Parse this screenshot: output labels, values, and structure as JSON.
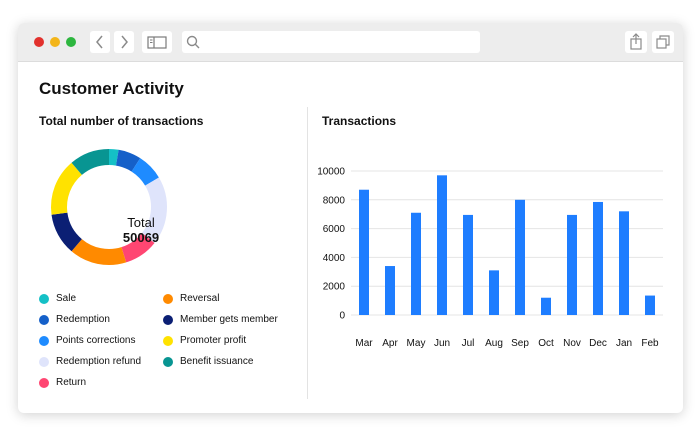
{
  "page": {
    "title": "Customer Activity",
    "donut_title": "Total number of transactions",
    "donut_total_label": "Total",
    "donut_total_value": "50069",
    "bar_title": "Transactions"
  },
  "legend": [
    {
      "label": "Sale",
      "color": "#14c0c6"
    },
    {
      "label": "Reversal",
      "color": "#ff8a00"
    },
    {
      "label": "Redemption",
      "color": "#1560c9"
    },
    {
      "label": "Member gets member",
      "color": "#0b1f74"
    },
    {
      "label": "Points corrections",
      "color": "#1e8bff"
    },
    {
      "label": "Promoter profit",
      "color": "#ffe200"
    },
    {
      "label": "Redemption refund",
      "color": "#dfe4fb"
    },
    {
      "label": "Benefit issuance",
      "color": "#089592"
    },
    {
      "label": "Return",
      "color": "#ff4672"
    }
  ],
  "chart_data": [
    {
      "type": "pie",
      "title": "Total number of transactions",
      "total": 50069,
      "categories": [
        "Sale",
        "Redemption",
        "Points corrections",
        "Redemption refund",
        "Return",
        "Reversal",
        "Member gets member",
        "Promoter profit",
        "Benefit issuance"
      ],
      "values": [
        2.5,
        6,
        7,
        18,
        9,
        15,
        11,
        15,
        10.5
      ],
      "colors": [
        "#14c0c6",
        "#1560c9",
        "#1e8bff",
        "#dfe4fb",
        "#ff4672",
        "#ff8a00",
        "#0b1f74",
        "#ffe200",
        "#089592"
      ]
    },
    {
      "type": "bar",
      "title": "Transactions",
      "categories": [
        "Mar",
        "Apr",
        "May",
        "Jun",
        "Jul",
        "Aug",
        "Sep",
        "Oct",
        "Nov",
        "Dec",
        "Jan",
        "Feb"
      ],
      "values": [
        8700,
        3400,
        7100,
        9700,
        6950,
        3100,
        8000,
        1200,
        6950,
        7850,
        7200,
        1350
      ],
      "ylim": [
        0,
        10000
      ],
      "yticks": [
        0,
        2000,
        4000,
        6000,
        8000,
        10000
      ],
      "color": "#1e7dff",
      "grid": true
    }
  ],
  "icons": {
    "back": "chevron-left-icon",
    "forward": "chevron-right-icon",
    "sidebar": "sidebar-icon",
    "search": "search-icon",
    "share": "share-icon",
    "tabs": "tabs-icon"
  }
}
